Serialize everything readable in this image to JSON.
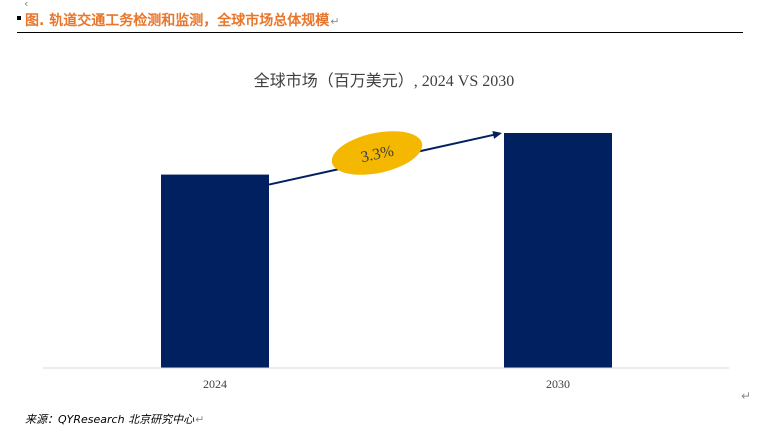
{
  "document": {
    "top_mark": "‹",
    "figure_title": "图.  轨道交通工务检测和监测，全球市场总体规模",
    "paragraph_mark": "↵",
    "source_note": "来源：QYResearch 北京研究中心"
  },
  "chart_data": {
    "type": "bar",
    "title": "全球市场（百万美元）, 2024 VS 2030",
    "categories": [
      "2024",
      "2030"
    ],
    "values": [
      100,
      121.5
    ],
    "xlabel": "",
    "ylabel": "",
    "ylim": [
      0,
      121.5
    ],
    "grid": false,
    "legend": "none",
    "bar_color": "#012060",
    "annotation": {
      "text": "3.3%",
      "fill": "#F5B800",
      "arrow_color": "#012060"
    }
  }
}
